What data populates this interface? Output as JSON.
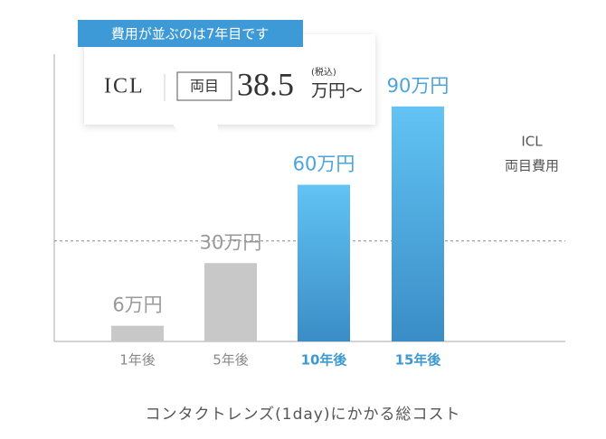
{
  "chart_data": {
    "type": "bar",
    "x_label": "コンタクトレンズ(1day)にかかる総コスト",
    "categories": [
      "1年後",
      "5年後",
      "10年後",
      "15年後"
    ],
    "values": [
      6,
      30,
      60,
      90
    ],
    "value_labels": [
      "6万円",
      "30万円",
      "60万円",
      "90万円"
    ],
    "colors": [
      "#c8c8c8",
      "#c8c8c8",
      "#4fb0e6",
      "#4fb0e6"
    ],
    "ylim": [
      0,
      110
    ],
    "reference": {
      "value": 38.5,
      "label": [
        "ICL",
        "両目費用"
      ]
    },
    "callout": {
      "badge": "費用が並ぶのは7年目です",
      "product": "ICL",
      "tag": "両目",
      "tax_note": "(税込)",
      "unit": "万円〜"
    }
  }
}
